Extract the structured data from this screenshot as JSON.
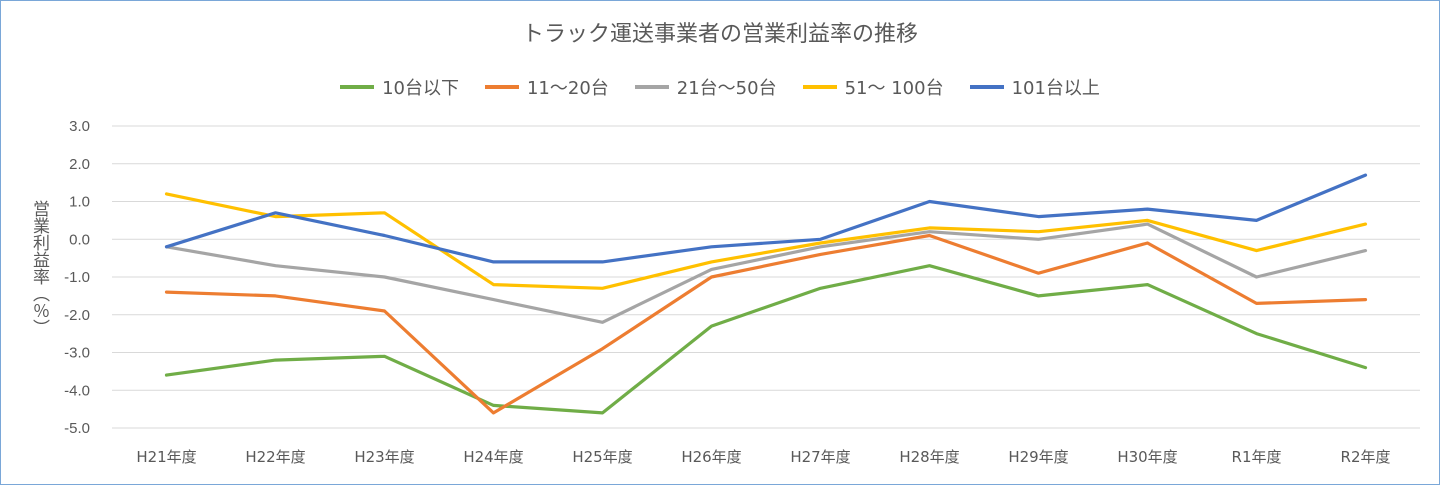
{
  "chart_data": {
    "type": "line",
    "title": "トラック運送事業者の営業利益率の推移",
    "ylabel": "営業利益率（％）",
    "xlabel": "",
    "categories": [
      "H21年度",
      "H22年度",
      "H23年度",
      "H24年度",
      "H25年度",
      "H26年度",
      "H27年度",
      "H28年度",
      "H29年度",
      "H30年度",
      "R1年度",
      "R2年度"
    ],
    "ylim": [
      -5.0,
      3.0
    ],
    "yticks": [
      "3.0",
      "2.0",
      "1.0",
      "0.0",
      "-1.0",
      "-2.0",
      "-3.0",
      "-4.0",
      "-5.0"
    ],
    "grid": true,
    "legend_position": "top",
    "series": [
      {
        "name": "10台以下",
        "color": "#70ad47",
        "values": [
          -3.6,
          -3.2,
          -3.1,
          -4.4,
          -4.6,
          -2.3,
          -1.3,
          -0.7,
          -1.5,
          -1.2,
          -2.5,
          -3.4
        ]
      },
      {
        "name": "11〜20台",
        "color": "#ed7d31",
        "values": [
          -1.4,
          -1.5,
          -1.9,
          -4.6,
          -2.9,
          -1.0,
          -0.4,
          0.1,
          -0.9,
          -0.1,
          -1.7,
          -1.6
        ]
      },
      {
        "name": "21台〜50台",
        "color": "#a5a5a5",
        "values": [
          -0.2,
          -0.7,
          -1.0,
          -1.6,
          -2.2,
          -0.8,
          -0.2,
          0.2,
          0.0,
          0.4,
          -1.0,
          -0.3
        ]
      },
      {
        "name": "51〜 100台",
        "color": "#ffc000",
        "values": [
          1.2,
          0.6,
          0.7,
          -1.2,
          -1.3,
          -0.6,
          -0.1,
          0.3,
          0.2,
          0.5,
          -0.3,
          0.4
        ]
      },
      {
        "name": "101台以上",
        "color": "#4472c4",
        "values": [
          -0.2,
          0.7,
          0.1,
          -0.6,
          -0.6,
          -0.2,
          0.0,
          1.0,
          0.6,
          0.8,
          0.5,
          1.7
        ]
      }
    ]
  }
}
